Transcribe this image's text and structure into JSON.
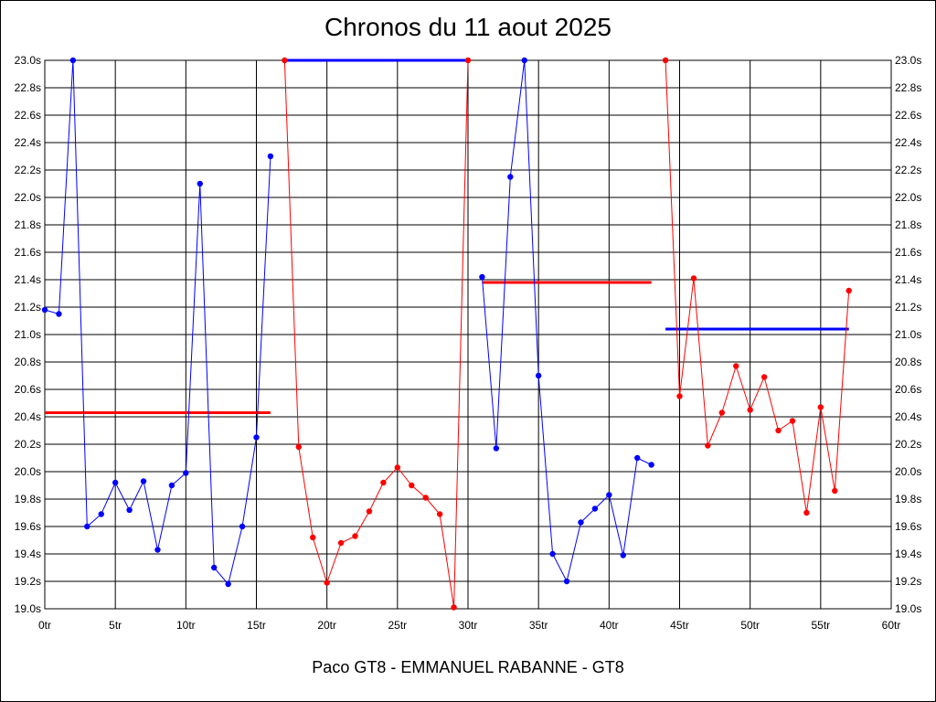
{
  "chart_data": {
    "type": "line",
    "title": "Chronos du 11 aout 2025",
    "xlabel": "Paco GT8 - EMMANUEL RABANNE - GT8",
    "ylabel": "",
    "xlim": [
      0,
      60
    ],
    "ylim": [
      19.0,
      23.0
    ],
    "grid": true,
    "x_ticks": [
      0,
      5,
      10,
      15,
      20,
      25,
      30,
      35,
      40,
      45,
      50,
      55,
      60
    ],
    "x_tick_labels": [
      "0tr",
      "5tr",
      "10tr",
      "15tr",
      "20tr",
      "25tr",
      "30tr",
      "35tr",
      "40tr",
      "45tr",
      "50tr",
      "55tr",
      "60tr"
    ],
    "y_ticks": [
      19.0,
      19.2,
      19.4,
      19.6,
      19.8,
      20.0,
      20.2,
      20.4,
      20.6,
      20.8,
      21.0,
      21.2,
      21.4,
      21.6,
      21.8,
      22.0,
      22.2,
      22.4,
      22.6,
      22.8,
      23.0
    ],
    "y_tick_labels": [
      "19.0s",
      "19.2s",
      "19.4s",
      "19.6s",
      "19.8s",
      "20.0s",
      "20.2s",
      "20.4s",
      "20.6s",
      "20.8s",
      "21.0s",
      "21.2s",
      "21.4s",
      "21.6s",
      "21.8s",
      "22.0s",
      "22.2s",
      "22.4s",
      "22.6s",
      "22.8s",
      "23.0s"
    ],
    "series": [
      {
        "color": "#0000ff",
        "x": [
          0,
          1,
          2,
          3,
          4,
          5,
          6,
          7,
          8,
          9,
          10,
          11,
          12,
          13,
          14,
          15,
          16
        ],
        "values": [
          21.18,
          21.15,
          23.0,
          19.6,
          19.69,
          19.92,
          19.72,
          19.93,
          19.43,
          19.9,
          19.99,
          22.1,
          19.3,
          19.18,
          19.6,
          20.25,
          22.3
        ]
      },
      {
        "color": "#ff0000",
        "x": [
          17,
          18,
          19,
          20,
          21,
          22,
          23,
          24,
          25,
          26,
          27,
          28,
          29,
          30
        ],
        "values": [
          23.0,
          20.18,
          19.52,
          19.19,
          19.48,
          19.53,
          19.71,
          19.92,
          20.03,
          19.9,
          19.81,
          19.69,
          19.01,
          23.0
        ]
      },
      {
        "color": "#0000ff",
        "x": [
          31,
          32,
          33,
          34,
          35,
          36,
          37,
          38,
          39,
          40,
          41,
          42,
          43
        ],
        "values": [
          21.42,
          20.17,
          22.15,
          23.0,
          20.7,
          19.4,
          19.2,
          19.63,
          19.73,
          19.83,
          19.39,
          20.1,
          20.05
        ]
      },
      {
        "color": "#ff0000",
        "x": [
          44,
          45,
          46,
          47,
          48,
          49,
          50,
          51,
          52,
          53,
          54,
          55,
          56,
          57
        ],
        "values": [
          23.0,
          20.55,
          21.41,
          20.19,
          20.43,
          20.77,
          20.45,
          20.69,
          20.3,
          20.37,
          19.7,
          20.47,
          19.86,
          21.32
        ]
      }
    ],
    "averages": [
      {
        "color": "#ff0000",
        "x": [
          0,
          16
        ],
        "value": 20.43
      },
      {
        "color": "#0000ff",
        "x": [
          17,
          30
        ],
        "value": 23.0
      },
      {
        "color": "#ff0000",
        "x": [
          31,
          43
        ],
        "value": 21.38
      },
      {
        "color": "#0000ff",
        "x": [
          44,
          57
        ],
        "value": 21.04
      }
    ]
  }
}
